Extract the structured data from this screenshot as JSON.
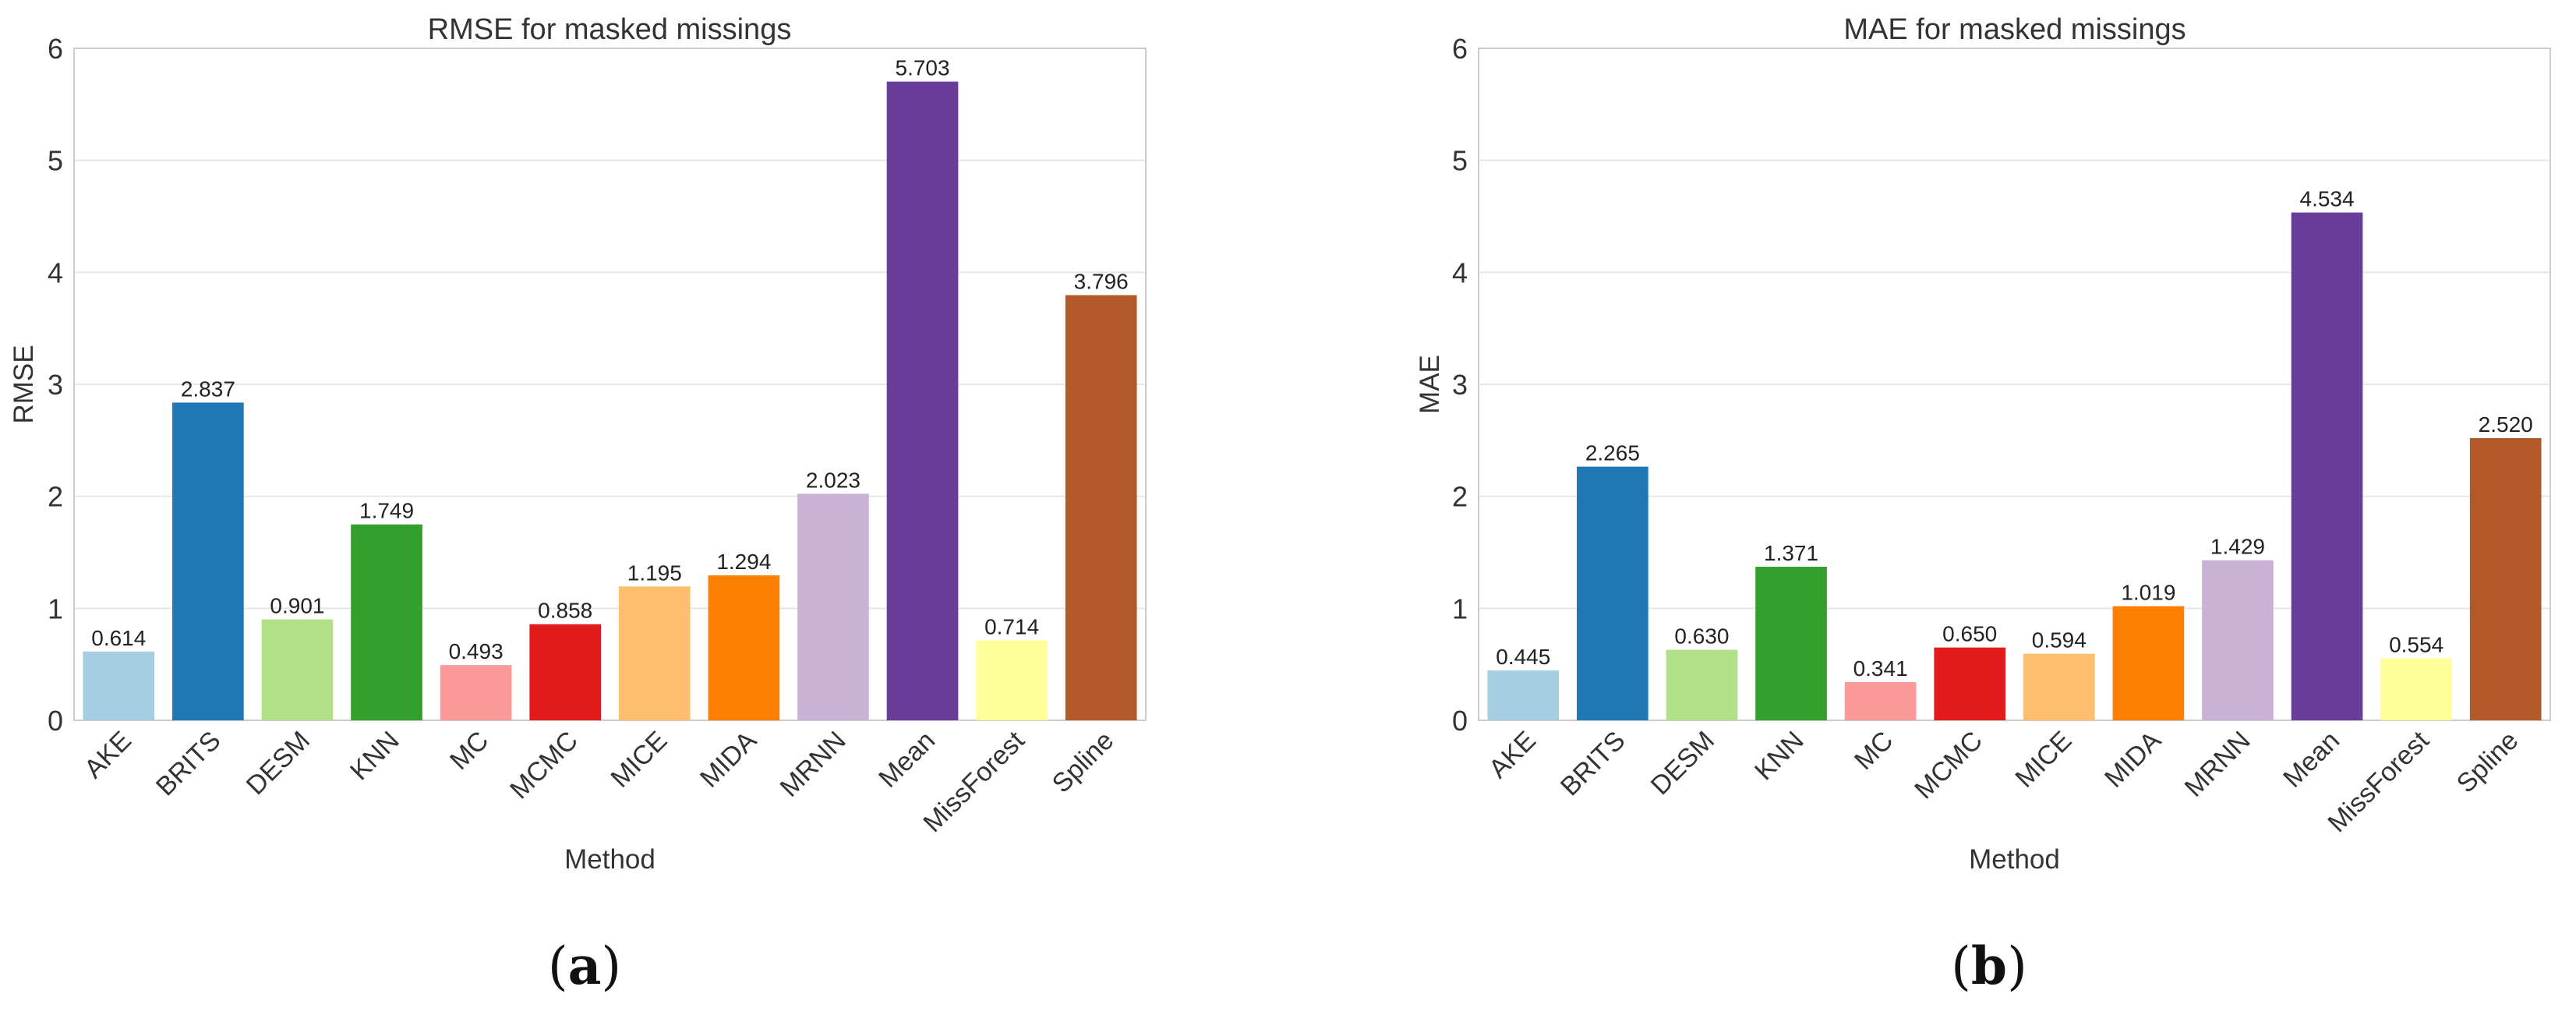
{
  "chart_data": [
    {
      "type": "bar",
      "panel_label": "(a)",
      "panel_letter": "a",
      "title": "RMSE for masked missings",
      "xlabel": "Method",
      "ylabel": "RMSE",
      "ylim": [
        0,
        6
      ],
      "yticks": [
        0,
        1,
        2,
        3,
        4,
        5,
        6
      ],
      "grid": true,
      "categories": [
        "AKE",
        "BRITS",
        "DESM",
        "KNN",
        "MC",
        "MCMC",
        "MICE",
        "MIDA",
        "MRNN",
        "Mean",
        "MissForest",
        "Spline"
      ],
      "values": [
        0.614,
        2.837,
        0.901,
        1.749,
        0.493,
        0.858,
        1.195,
        1.294,
        2.023,
        5.703,
        0.714,
        3.796
      ],
      "value_labels": [
        "0.614",
        "2.837",
        "0.901",
        "1.749",
        "0.493",
        "0.858",
        "1.195",
        "1.294",
        "2.023",
        "5.703",
        "0.714",
        "3.796"
      ]
    },
    {
      "type": "bar",
      "panel_label": "(b)",
      "panel_letter": "b",
      "title": "MAE for masked missings",
      "xlabel": "Method",
      "ylabel": "MAE",
      "ylim": [
        0,
        6
      ],
      "yticks": [
        0,
        1,
        2,
        3,
        4,
        5,
        6
      ],
      "grid": true,
      "categories": [
        "AKE",
        "BRITS",
        "DESM",
        "KNN",
        "MC",
        "MCMC",
        "MICE",
        "MIDA",
        "MRNN",
        "Mean",
        "MissForest",
        "Spline"
      ],
      "values": [
        0.445,
        2.265,
        0.63,
        1.371,
        0.341,
        0.65,
        0.594,
        1.019,
        1.429,
        4.534,
        0.554,
        2.52
      ],
      "value_labels": [
        "0.445",
        "2.265",
        "0.630",
        "1.371",
        "0.341",
        "0.650",
        "0.594",
        "1.019",
        "1.429",
        "4.534",
        "0.554",
        "2.520"
      ]
    }
  ],
  "colors": {
    "bars": [
      "#a6cee3",
      "#1f78b4",
      "#b2df8a",
      "#33a02c",
      "#fb9a99",
      "#e31a1c",
      "#fdbf6f",
      "#ff7f00",
      "#cab2d6",
      "#6a3d9a",
      "#ffff99",
      "#b15928"
    ],
    "grid": "#e6e6e6",
    "axis": "#cccccc",
    "text": "#333333"
  }
}
